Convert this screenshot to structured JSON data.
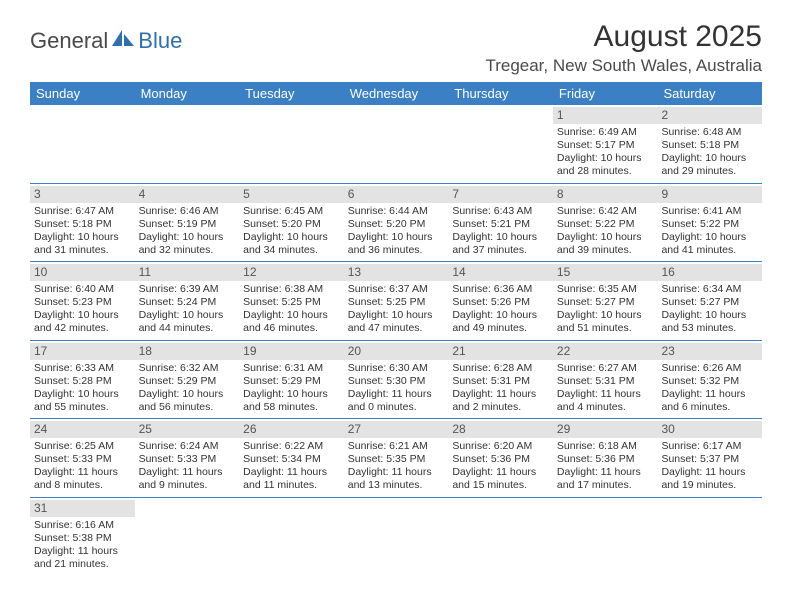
{
  "logo": {
    "text1": "General",
    "text2": "Blue"
  },
  "title": "August 2025",
  "location": "Tregear, New South Wales, Australia",
  "colors": {
    "header_bg": "#3b7fc4",
    "header_text": "#ffffff",
    "daynum_bg": "#e3e3e3",
    "row_border": "#3b7fc4",
    "text": "#333333"
  },
  "dayNames": [
    "Sunday",
    "Monday",
    "Tuesday",
    "Wednesday",
    "Thursday",
    "Friday",
    "Saturday"
  ],
  "weeks": [
    [
      null,
      null,
      null,
      null,
      null,
      {
        "n": "1",
        "sr": "Sunrise: 6:49 AM",
        "ss": "Sunset: 5:17 PM",
        "d1": "Daylight: 10 hours",
        "d2": "and 28 minutes."
      },
      {
        "n": "2",
        "sr": "Sunrise: 6:48 AM",
        "ss": "Sunset: 5:18 PM",
        "d1": "Daylight: 10 hours",
        "d2": "and 29 minutes."
      }
    ],
    [
      {
        "n": "3",
        "sr": "Sunrise: 6:47 AM",
        "ss": "Sunset: 5:18 PM",
        "d1": "Daylight: 10 hours",
        "d2": "and 31 minutes."
      },
      {
        "n": "4",
        "sr": "Sunrise: 6:46 AM",
        "ss": "Sunset: 5:19 PM",
        "d1": "Daylight: 10 hours",
        "d2": "and 32 minutes."
      },
      {
        "n": "5",
        "sr": "Sunrise: 6:45 AM",
        "ss": "Sunset: 5:20 PM",
        "d1": "Daylight: 10 hours",
        "d2": "and 34 minutes."
      },
      {
        "n": "6",
        "sr": "Sunrise: 6:44 AM",
        "ss": "Sunset: 5:20 PM",
        "d1": "Daylight: 10 hours",
        "d2": "and 36 minutes."
      },
      {
        "n": "7",
        "sr": "Sunrise: 6:43 AM",
        "ss": "Sunset: 5:21 PM",
        "d1": "Daylight: 10 hours",
        "d2": "and 37 minutes."
      },
      {
        "n": "8",
        "sr": "Sunrise: 6:42 AM",
        "ss": "Sunset: 5:22 PM",
        "d1": "Daylight: 10 hours",
        "d2": "and 39 minutes."
      },
      {
        "n": "9",
        "sr": "Sunrise: 6:41 AM",
        "ss": "Sunset: 5:22 PM",
        "d1": "Daylight: 10 hours",
        "d2": "and 41 minutes."
      }
    ],
    [
      {
        "n": "10",
        "sr": "Sunrise: 6:40 AM",
        "ss": "Sunset: 5:23 PM",
        "d1": "Daylight: 10 hours",
        "d2": "and 42 minutes."
      },
      {
        "n": "11",
        "sr": "Sunrise: 6:39 AM",
        "ss": "Sunset: 5:24 PM",
        "d1": "Daylight: 10 hours",
        "d2": "and 44 minutes."
      },
      {
        "n": "12",
        "sr": "Sunrise: 6:38 AM",
        "ss": "Sunset: 5:25 PM",
        "d1": "Daylight: 10 hours",
        "d2": "and 46 minutes."
      },
      {
        "n": "13",
        "sr": "Sunrise: 6:37 AM",
        "ss": "Sunset: 5:25 PM",
        "d1": "Daylight: 10 hours",
        "d2": "and 47 minutes."
      },
      {
        "n": "14",
        "sr": "Sunrise: 6:36 AM",
        "ss": "Sunset: 5:26 PM",
        "d1": "Daylight: 10 hours",
        "d2": "and 49 minutes."
      },
      {
        "n": "15",
        "sr": "Sunrise: 6:35 AM",
        "ss": "Sunset: 5:27 PM",
        "d1": "Daylight: 10 hours",
        "d2": "and 51 minutes."
      },
      {
        "n": "16",
        "sr": "Sunrise: 6:34 AM",
        "ss": "Sunset: 5:27 PM",
        "d1": "Daylight: 10 hours",
        "d2": "and 53 minutes."
      }
    ],
    [
      {
        "n": "17",
        "sr": "Sunrise: 6:33 AM",
        "ss": "Sunset: 5:28 PM",
        "d1": "Daylight: 10 hours",
        "d2": "and 55 minutes."
      },
      {
        "n": "18",
        "sr": "Sunrise: 6:32 AM",
        "ss": "Sunset: 5:29 PM",
        "d1": "Daylight: 10 hours",
        "d2": "and 56 minutes."
      },
      {
        "n": "19",
        "sr": "Sunrise: 6:31 AM",
        "ss": "Sunset: 5:29 PM",
        "d1": "Daylight: 10 hours",
        "d2": "and 58 minutes."
      },
      {
        "n": "20",
        "sr": "Sunrise: 6:30 AM",
        "ss": "Sunset: 5:30 PM",
        "d1": "Daylight: 11 hours",
        "d2": "and 0 minutes."
      },
      {
        "n": "21",
        "sr": "Sunrise: 6:28 AM",
        "ss": "Sunset: 5:31 PM",
        "d1": "Daylight: 11 hours",
        "d2": "and 2 minutes."
      },
      {
        "n": "22",
        "sr": "Sunrise: 6:27 AM",
        "ss": "Sunset: 5:31 PM",
        "d1": "Daylight: 11 hours",
        "d2": "and 4 minutes."
      },
      {
        "n": "23",
        "sr": "Sunrise: 6:26 AM",
        "ss": "Sunset: 5:32 PM",
        "d1": "Daylight: 11 hours",
        "d2": "and 6 minutes."
      }
    ],
    [
      {
        "n": "24",
        "sr": "Sunrise: 6:25 AM",
        "ss": "Sunset: 5:33 PM",
        "d1": "Daylight: 11 hours",
        "d2": "and 8 minutes."
      },
      {
        "n": "25",
        "sr": "Sunrise: 6:24 AM",
        "ss": "Sunset: 5:33 PM",
        "d1": "Daylight: 11 hours",
        "d2": "and 9 minutes."
      },
      {
        "n": "26",
        "sr": "Sunrise: 6:22 AM",
        "ss": "Sunset: 5:34 PM",
        "d1": "Daylight: 11 hours",
        "d2": "and 11 minutes."
      },
      {
        "n": "27",
        "sr": "Sunrise: 6:21 AM",
        "ss": "Sunset: 5:35 PM",
        "d1": "Daylight: 11 hours",
        "d2": "and 13 minutes."
      },
      {
        "n": "28",
        "sr": "Sunrise: 6:20 AM",
        "ss": "Sunset: 5:36 PM",
        "d1": "Daylight: 11 hours",
        "d2": "and 15 minutes."
      },
      {
        "n": "29",
        "sr": "Sunrise: 6:18 AM",
        "ss": "Sunset: 5:36 PM",
        "d1": "Daylight: 11 hours",
        "d2": "and 17 minutes."
      },
      {
        "n": "30",
        "sr": "Sunrise: 6:17 AM",
        "ss": "Sunset: 5:37 PM",
        "d1": "Daylight: 11 hours",
        "d2": "and 19 minutes."
      }
    ],
    [
      {
        "n": "31",
        "sr": "Sunrise: 6:16 AM",
        "ss": "Sunset: 5:38 PM",
        "d1": "Daylight: 11 hours",
        "d2": "and 21 minutes."
      },
      null,
      null,
      null,
      null,
      null,
      null
    ]
  ]
}
